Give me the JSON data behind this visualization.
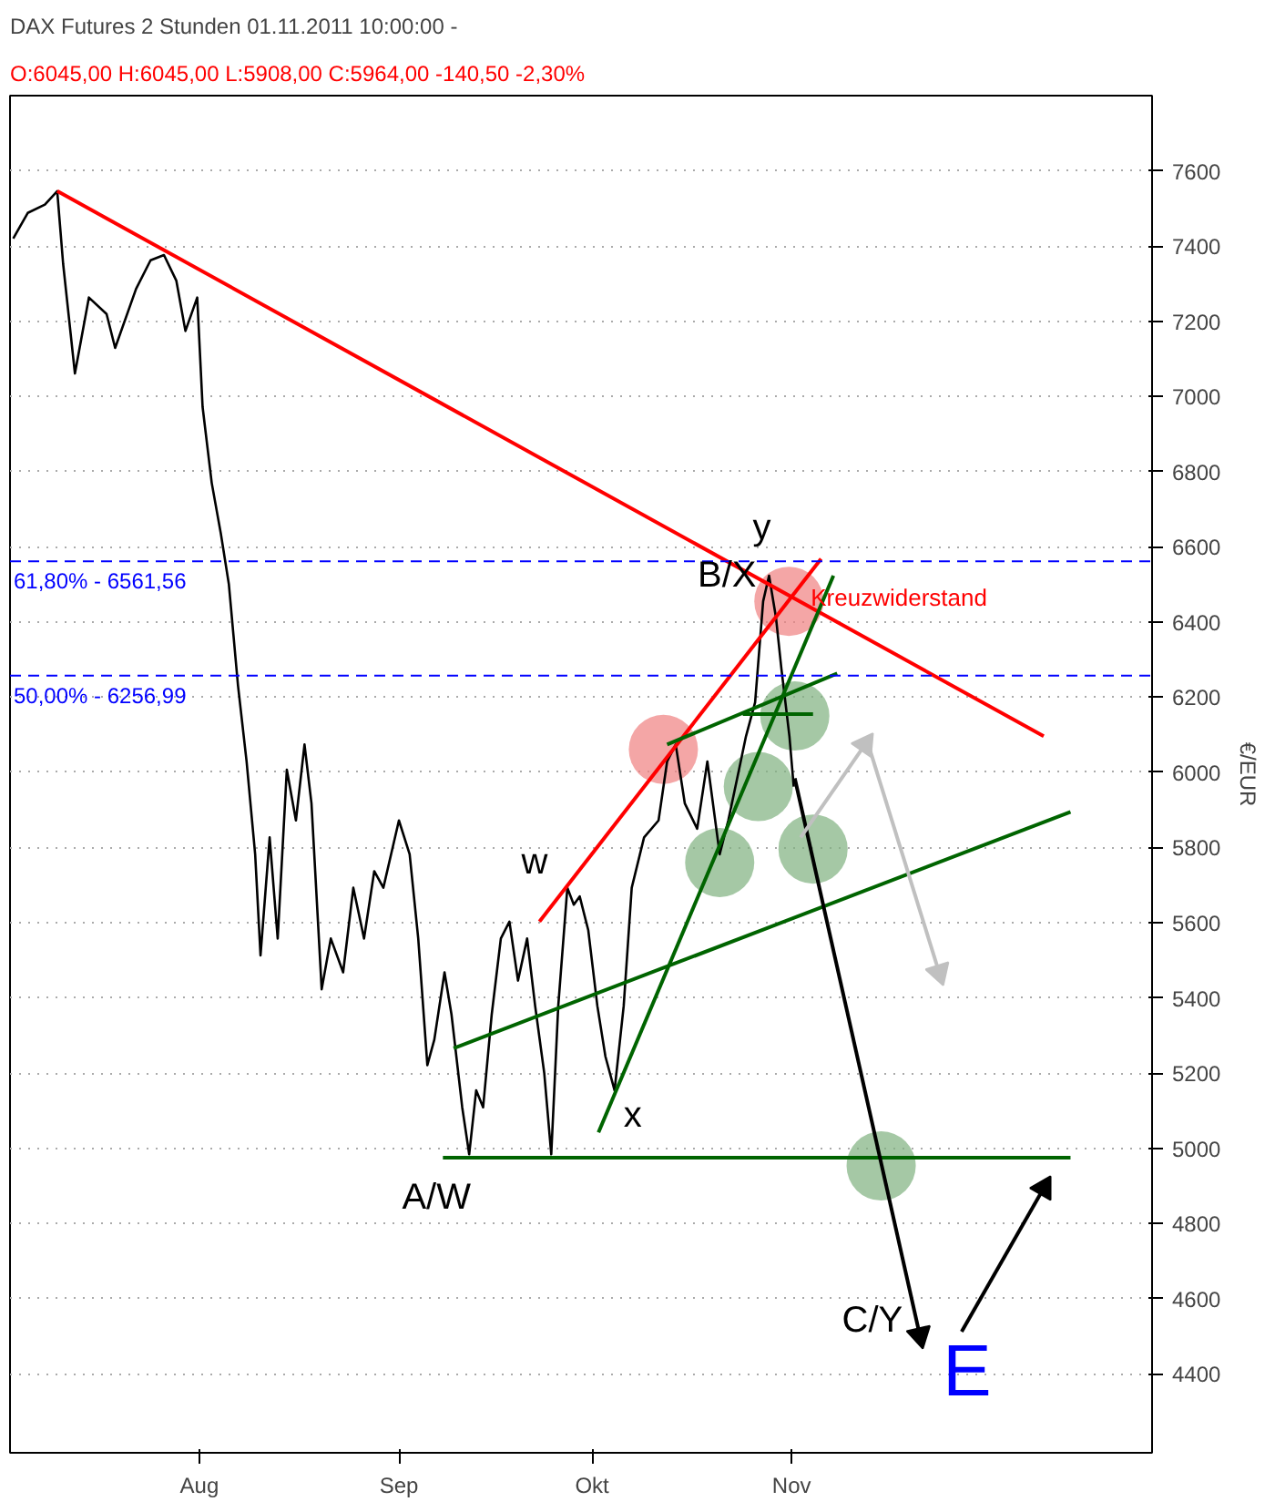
{
  "chart_data": {
    "type": "line",
    "title": "DAX Futures 2 Stunden  01.11.2011 10:00:00 - ",
    "subtitle": "O:6045,00 H:6045,00 L:5908,00 C:5964,00 -140,50 -2,30%",
    "ylabel": "€/EUR",
    "xlim": [
      "2011-07-02T14:00",
      "2011-12-27T00:00"
    ],
    "ylim": [
      4190,
      7800
    ],
    "xticks": [
      {
        "value": "2011-08-01",
        "label": "Aug"
      },
      {
        "value": "2011-09-01",
        "label": "Sep"
      },
      {
        "value": "2011-10-01",
        "label": "Okt"
      },
      {
        "value": "2011-11-01",
        "label": "Nov"
      }
    ],
    "yticks": [
      4400,
      4600,
      4800,
      5000,
      5200,
      5400,
      5600,
      5800,
      6000,
      6200,
      6400,
      6600,
      6800,
      7000,
      7200,
      7400,
      7600
    ],
    "grid": "y",
    "series": [
      {
        "color": "#000000",
        "x": [
          "2011-07-03T02:00",
          "2011-07-05T08:00",
          "2011-07-08T00:00",
          "2011-07-09T22:00",
          "2011-07-10T20:00",
          "2011-07-12T16:00",
          "2011-07-14T20:00",
          "2011-07-17T14:00",
          "2011-07-18T22:00",
          "2011-07-22T04:00",
          "2011-07-24T10:00",
          "2011-07-26T12:00",
          "2011-07-28T10:00",
          "2011-07-29T20:00",
          "2011-07-31T16:00",
          "2011-08-01T12:00",
          "2011-08-02T22:00",
          "2011-08-04T08:00",
          "2011-08-05T14:00",
          "2011-08-07T00:00",
          "2011-08-08T08:00",
          "2011-08-09T16:00",
          "2011-08-10T12:00",
          "2011-08-11T22:00",
          "2011-08-13T04:00",
          "2011-08-14T14:00",
          "2011-08-16T00:00",
          "2011-08-17T08:00",
          "2011-08-18T10:00",
          "2011-08-20T00:00",
          "2011-08-21T10:00",
          "2011-08-23T08:00",
          "2011-08-24T22:00",
          "2011-08-26T14:00",
          "2011-08-28T04:00",
          "2011-08-29T14:00",
          "2011-09-01T00:00",
          "2011-09-02T16:00",
          "2011-09-04T00:00",
          "2011-09-05T10:00",
          "2011-09-06T12:00",
          "2011-09-08T02:00",
          "2011-09-09T04:00",
          "2011-09-10T20:00",
          "2011-09-11T22:00",
          "2011-09-13T00:00",
          "2011-09-14T02:00",
          "2011-09-15T10:00",
          "2011-09-16T20:00",
          "2011-09-18T04:00",
          "2011-09-19T12:00",
          "2011-09-20T22:00",
          "2011-09-22T04:00",
          "2011-09-23T14:00",
          "2011-09-24T16:00",
          "2011-09-25T18:00",
          "2011-09-27T04:00",
          "2011-09-28T04:00",
          "2011-09-29T02:00",
          "2011-09-30T10:00",
          "2011-10-01T20:00",
          "2011-10-03T02:00",
          "2011-10-04T12:00",
          "2011-10-05T22:00",
          "2011-10-07T04:00",
          "2011-10-09T02:00",
          "2011-10-11T08:00",
          "2011-10-12T16:00",
          "2011-10-14T00:00",
          "2011-10-15T10:00",
          "2011-10-17T08:00",
          "2011-10-18T22:00",
          "2011-10-20T20:00",
          "2011-10-22T04:00",
          "2011-10-23T20:00",
          "2011-10-24T22:00",
          "2011-10-26T08:00",
          "2011-10-27T14:00",
          "2011-10-28T12:00",
          "2011-10-29T14:00",
          "2011-10-30T10:00",
          "2011-10-31T16:00",
          "2011-11-01T08:00"
        ],
        "values": [
          7420,
          7488,
          7510,
          7546,
          7353,
          7061,
          7263,
          7219,
          7129,
          7286,
          7362,
          7376,
          7308,
          7174,
          7263,
          6972,
          6770,
          6635,
          6500,
          6231,
          6029,
          5782,
          5513,
          5827,
          5558,
          6007,
          5872,
          6074,
          5917,
          5423,
          5558,
          5468,
          5693,
          5558,
          5737,
          5693,
          5872,
          5782,
          5558,
          5221,
          5289,
          5468,
          5356,
          5109,
          4984,
          5154,
          5109,
          5356,
          5558,
          5603,
          5446,
          5558,
          5378,
          5199,
          4984,
          5378,
          5693,
          5648,
          5670,
          5580,
          5378,
          5244,
          5154,
          5378,
          5693,
          5827,
          5872,
          6029,
          6074,
          5917,
          5850,
          6029,
          5782,
          5872,
          6007,
          6096,
          6186,
          6455,
          6523,
          6411,
          6276,
          6096,
          5962
        ]
      },
      {
        "color": "#ff0000",
        "x": [
          "2011-07-09T22:00",
          "2011-12-10T04:00"
        ],
        "values": [
          7546,
          6096
        ]
      },
      {
        "color": "#ff0000",
        "x": [
          "2011-09-22T20:00",
          "2011-11-05T14:00"
        ],
        "values": [
          5603,
          6568
        ]
      },
      {
        "color": "#006400",
        "x": [
          "2011-09-07T20:00",
          "2011-12-14T08:00"
        ],
        "values": [
          4975,
          4975
        ]
      },
      {
        "color": "#006400",
        "x": [
          "2011-09-09T12:00",
          "2011-12-14T08:00"
        ],
        "values": [
          5266,
          5895
        ]
      },
      {
        "color": "#006400",
        "x": [
          "2011-10-02T00:00",
          "2011-11-07T12:00"
        ],
        "values": [
          5042,
          6523
        ]
      },
      {
        "color": "#006400",
        "x": [
          "2011-10-12T16:00",
          "2011-11-08T02:00"
        ],
        "values": [
          6074,
          6263
        ]
      },
      {
        "color": "#006400",
        "x": [
          "2011-10-24T10:00",
          "2011-11-04T08:00"
        ],
        "values": [
          6155,
          6155
        ]
      },
      {
        "color": "#000000",
        "marker": "triangle",
        "x": [
          "2011-11-01T12:00",
          "2011-11-20T22:00"
        ],
        "values": [
          5984,
          4503
        ]
      },
      {
        "color": "#000000",
        "marker": "triangle",
        "x": [
          "2011-11-27T10:00",
          "2011-12-10T04:00"
        ],
        "values": [
          4512,
          4894
        ]
      },
      {
        "color": "#c0c0c0",
        "marker": "triangle",
        "x": [
          "2011-11-02T10:00",
          "2011-11-12T10:00"
        ],
        "values": [
          5827,
          6074
        ]
      },
      {
        "color": "#c0c0c0",
        "marker": "triangle",
        "x": [
          "2011-11-12T22:00",
          "2011-11-23T22:00"
        ],
        "values": [
          6074,
          5468
        ]
      },
      {
        "type": "scatter",
        "color": "#f08080",
        "marker": "circle",
        "x": [
          "2011-10-12T02:00",
          "2011-10-31T14:00"
        ],
        "values": [
          6061,
          6455
        ]
      },
      {
        "type": "scatter",
        "color": "#7fb07f",
        "marker": "circle",
        "x": [
          "2011-11-01T12:00",
          "2011-10-26T20:00",
          "2011-10-20T20:00",
          "2011-11-04T08:00",
          "2011-11-14T22:00"
        ],
        "values": [
          6150,
          5962,
          5760,
          5796,
          4953
        ]
      }
    ],
    "ref_lines": [
      {
        "axis": "y",
        "value": 6561.56,
        "color": "#0000ff",
        "line_style": "dashed"
      },
      {
        "axis": "y",
        "value": 6256.99,
        "color": "#0000ff",
        "line_style": "dashed"
      }
    ],
    "annotations": [
      {
        "text": "w",
        "x": "2011-09-27T04:00",
        "y": 5693
      },
      {
        "text": "x",
        "x": "2011-10-04T12:00",
        "y": 5154
      },
      {
        "text": "A/W",
        "x": "2011-09-11T22:00",
        "y": 4984
      },
      {
        "text": "B/X",
        "x": "2011-10-31T14:00",
        "y": 6455
      },
      {
        "text": "y",
        "x": "2011-10-28T12:00",
        "y": 6523
      },
      {
        "text": "Kreuzwiderstand",
        "x": "2011-10-31T14:00",
        "y": 6455
      },
      {
        "text": "C/Y",
        "x": "2011-11-20T22:00",
        "y": 4503
      },
      {
        "text": "E",
        "x": "2011-11-20T22:00",
        "y": 4503
      },
      {
        "text": "61,80% - 6561,56",
        "x": "2011-07-02T14:00",
        "y": 6561.56
      },
      {
        "text": "50,00% - 6256,99",
        "x": "2011-07-02T14:00",
        "y": 6256.99
      }
    ]
  }
}
